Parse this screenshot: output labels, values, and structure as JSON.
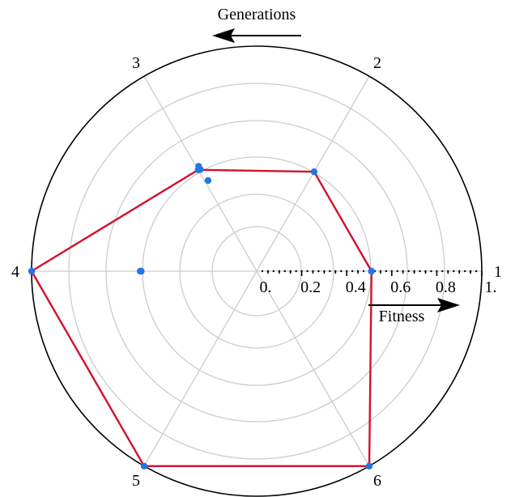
{
  "chart_data": {
    "type": "radar",
    "axis_labels": [
      "1",
      "2",
      "3",
      "4",
      "5",
      "6"
    ],
    "radial_tick_labels": [
      "0.",
      "0.2",
      "0.4",
      "0.6",
      "0.8",
      "1."
    ],
    "radial_range": [
      0,
      1
    ],
    "rings": [
      0.2,
      0.4,
      0.6,
      0.8,
      1.0
    ],
    "minor_tick_step": 0.05,
    "grid": true,
    "generations_label": "Generations",
    "fitness_label": "Fitness",
    "series": [
      {
        "values": [
          0.51,
          0.51,
          0.52,
          1.0,
          1.0,
          1.0
        ]
      }
    ],
    "scatter_points": [
      {
        "axis": 1,
        "value": 0.51
      },
      {
        "axis": 2,
        "value": 0.52
      },
      {
        "axis": 2,
        "value": 0.53
      },
      {
        "axis": 2,
        "value": 0.53
      },
      {
        "axis": 2,
        "value": 0.49
      },
      {
        "axis": 3,
        "value": 1.0
      },
      {
        "axis": 3,
        "value": 0.51
      },
      {
        "axis": 3,
        "value": 0.52
      },
      {
        "axis": 4,
        "value": 1.0
      },
      {
        "axis": 5,
        "value": 1.0
      },
      {
        "axis": 0,
        "value": 0.51
      }
    ],
    "colors": {
      "line": "#d4102c",
      "points": "#1f77e4",
      "grid": "#cccccc",
      "frame": "#000000"
    }
  }
}
